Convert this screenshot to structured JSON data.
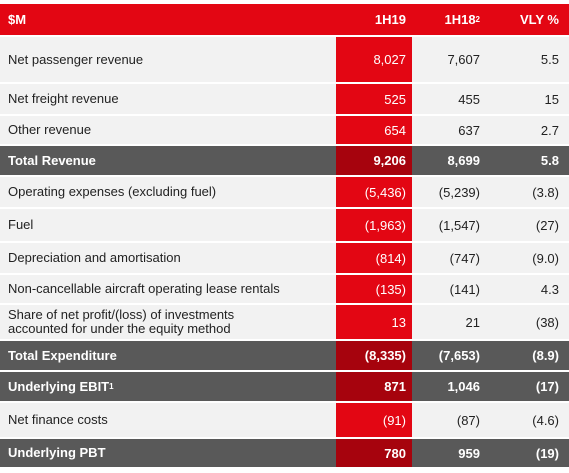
{
  "header": {
    "label": "$M",
    "col_1h19": "1H19",
    "col_1h18": "1H18",
    "col_1h18_sup": "2",
    "col_vly": "VLY %"
  },
  "rows": [
    {
      "label": "Net passenger revenue",
      "h19": "8,027",
      "h18": "7,607",
      "vly": "5.5"
    },
    {
      "label": "Net freight revenue",
      "h19": "525",
      "h18": "455",
      "vly": "15"
    },
    {
      "label": "Other revenue",
      "h19": "654",
      "h18": "637",
      "vly": "2.7"
    },
    {
      "label": "Total Revenue",
      "h19": "9,206",
      "h18": "8,699",
      "vly": "5.8"
    },
    {
      "label": "Operating expenses (excluding fuel)",
      "h19": "(5,436)",
      "h18": "(5,239)",
      "vly": "(3.8)"
    },
    {
      "label": "Fuel",
      "h19": "(1,963)",
      "h18": "(1,547)",
      "vly": "(27)"
    },
    {
      "label": "Depreciation and amortisation",
      "h19": "(814)",
      "h18": "(747)",
      "vly": "(9.0)"
    },
    {
      "label": "Non-cancellable aircraft operating lease rentals",
      "h19": "(135)",
      "h18": "(141)",
      "vly": "4.3"
    },
    {
      "label_line1": "Share of net profit/(loss) of investments",
      "label_line2": "accounted for under the equity method",
      "h19": "13",
      "h18": "21",
      "vly": "(38)"
    },
    {
      "label": "Total Expenditure",
      "h19": "(8,335)",
      "h18": "(7,653)",
      "vly": "(8.9)"
    },
    {
      "label": "Underlying EBIT",
      "label_sup": "1",
      "h19": "871",
      "h18": "1,046",
      "vly": "(17)"
    },
    {
      "label": "Net finance costs",
      "h19": "(91)",
      "h18": "(87)",
      "vly": "(4.6)"
    },
    {
      "label": "Underlying PBT",
      "h19": "780",
      "h18": "959",
      "vly": "(19)"
    }
  ]
}
